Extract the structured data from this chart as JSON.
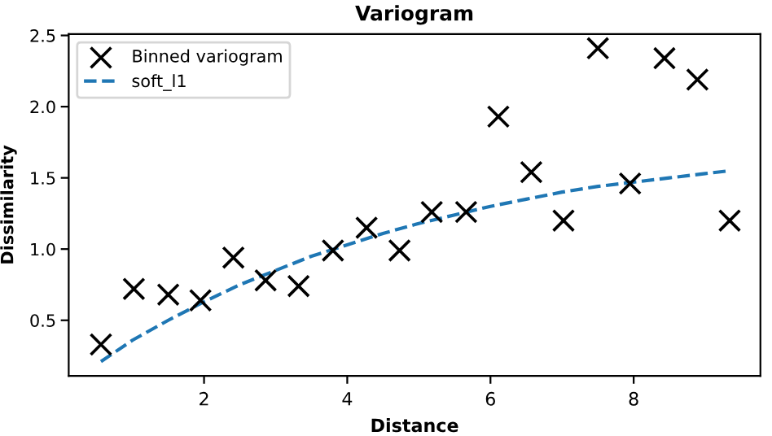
{
  "chart_data": {
    "type": "scatter",
    "title": "Variogram",
    "xlabel": "Distance",
    "ylabel": "Dissimilarity",
    "xlim": [
      0.11,
      9.77
    ],
    "ylim": [
      0.11,
      2.51
    ],
    "xticks": [
      2,
      4,
      6,
      8
    ],
    "yticks": [
      0.5,
      {
        "value": 1,
        "label": "1.0"
      },
      1.5,
      {
        "value": 2,
        "label": "2.0"
      },
      2.5
    ],
    "grid": false,
    "legend": "top left",
    "series": [
      {
        "name": "Binned variogram",
        "marker": "cross",
        "color": "#000000",
        "x": [
          0.56,
          1.02,
          1.5,
          1.95,
          2.41,
          2.86,
          3.32,
          3.8,
          4.27,
          4.73,
          5.18,
          5.66,
          6.11,
          6.57,
          7.02,
          7.5,
          7.95,
          8.43,
          8.89,
          9.34
        ],
        "values": [
          0.33,
          0.72,
          0.68,
          0.64,
          0.94,
          0.78,
          0.74,
          0.99,
          1.15,
          0.99,
          1.26,
          1.26,
          1.93,
          1.54,
          1.2,
          2.41,
          1.46,
          2.34,
          2.19,
          1.2
        ]
      },
      {
        "name": "soft_l1",
        "type": "line",
        "line_style": "dashed",
        "color": "#1f77b4",
        "x": [
          0.56,
          1.0,
          1.5,
          2.0,
          2.5,
          3.0,
          3.5,
          4.0,
          4.5,
          5.0,
          5.5,
          6.0,
          6.5,
          7.0,
          7.5,
          8.0,
          8.5,
          9.0,
          9.34
        ],
        "values": [
          0.21,
          0.36,
          0.5,
          0.63,
          0.75,
          0.85,
          0.95,
          1.03,
          1.11,
          1.18,
          1.24,
          1.3,
          1.35,
          1.4,
          1.44,
          1.47,
          1.5,
          1.53,
          1.55
        ]
      }
    ]
  }
}
